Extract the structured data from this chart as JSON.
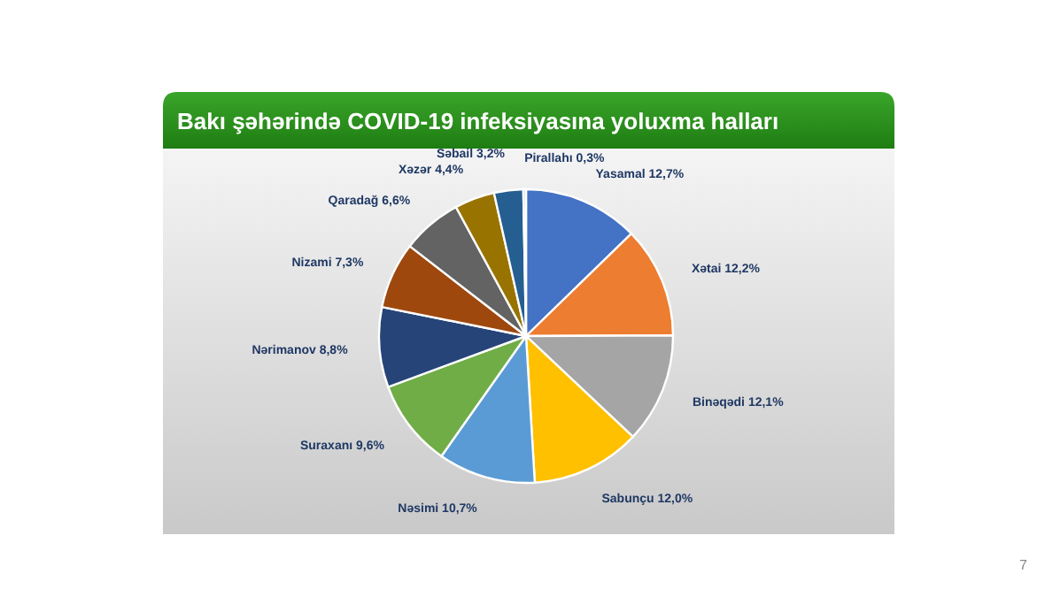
{
  "chart_data": {
    "type": "pie",
    "title": "Bakı şəhərində COVID-19 infeksiyasına yoluxma halları",
    "categories": [
      "Yasamal",
      "Xətai",
      "Binəqədi",
      "Sabunçu",
      "Nəsimi",
      "Suraxanı",
      "Nərimanov",
      "Nizami",
      "Qaradağ",
      "Xəzər",
      "Səbail",
      "Pirallahı"
    ],
    "values": [
      12.7,
      12.2,
      12.1,
      12.0,
      10.7,
      9.6,
      8.8,
      7.3,
      6.6,
      4.4,
      3.2,
      0.3
    ],
    "value_labels": [
      "12,7%",
      "12,2%",
      "12,1%",
      "12,0%",
      "10,7%",
      "9,6%",
      "8,8%",
      "7,3%",
      "6,6%",
      "4,4%",
      "3,2%",
      "0,3%"
    ],
    "colors": [
      "#4472c4",
      "#ed7d31",
      "#a5a5a5",
      "#ffc000",
      "#5b9bd5",
      "#70ad47",
      "#264478",
      "#9e480e",
      "#636363",
      "#997300",
      "#255e91",
      "#d9d9d9"
    ],
    "annotations": [
      "7"
    ]
  }
}
